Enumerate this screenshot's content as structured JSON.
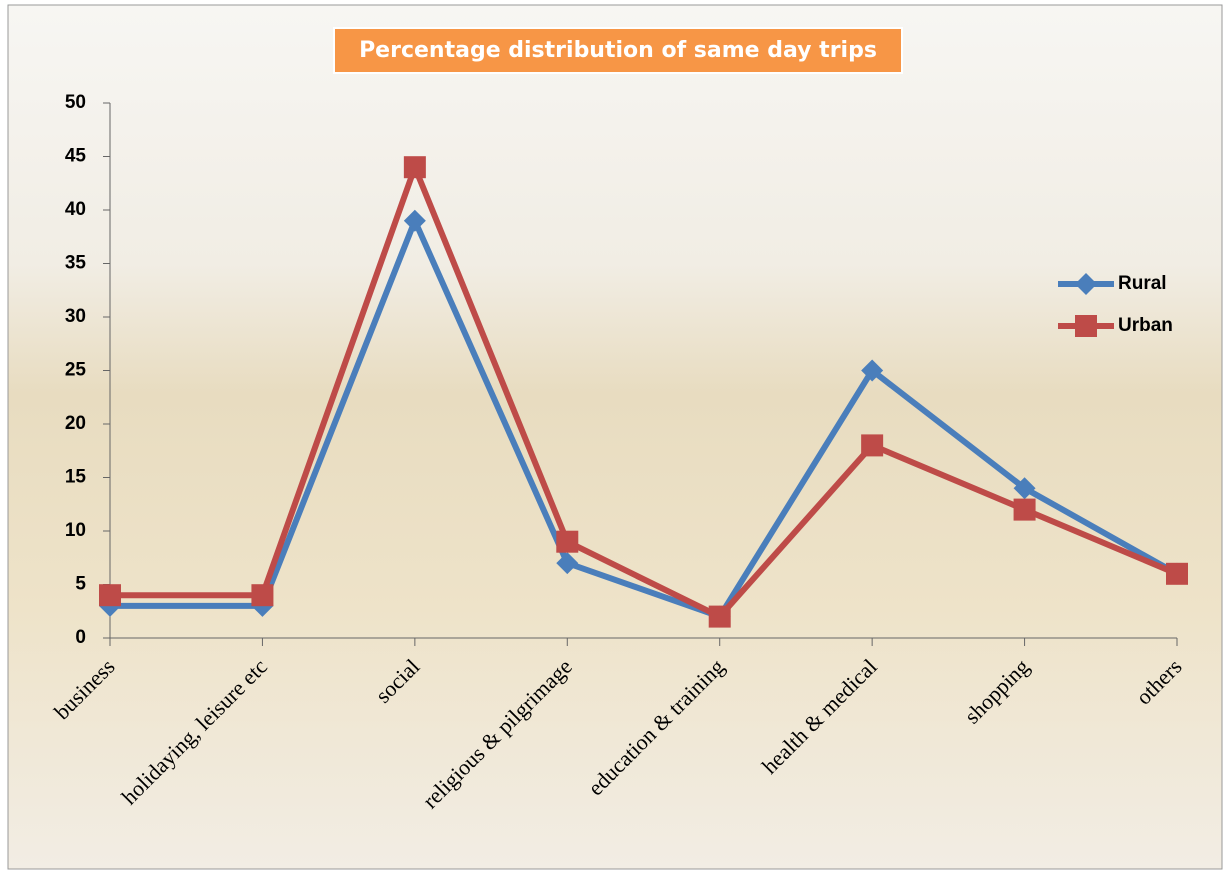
{
  "chart_data": {
    "type": "line",
    "title": "Percentage distribution of same day trips",
    "categories": [
      "business",
      "holidaying, leisure etc",
      "social",
      "religious & pilgrimage",
      "education & training",
      "health & medical",
      "shopping",
      "others"
    ],
    "series": [
      {
        "name": "Rural",
        "color": "#4a7ebb",
        "marker": "diamond",
        "values": [
          3,
          3,
          39,
          7,
          2,
          25,
          14,
          6
        ]
      },
      {
        "name": "Urban",
        "color": "#be4b48",
        "marker": "square",
        "values": [
          4,
          4,
          44,
          9,
          2,
          18,
          12,
          6
        ]
      }
    ],
    "ylim": [
      0,
      50
    ],
    "yticks": [
      0,
      5,
      10,
      15,
      20,
      25,
      30,
      35,
      40,
      45,
      50
    ],
    "grid": false,
    "legend": "right"
  }
}
